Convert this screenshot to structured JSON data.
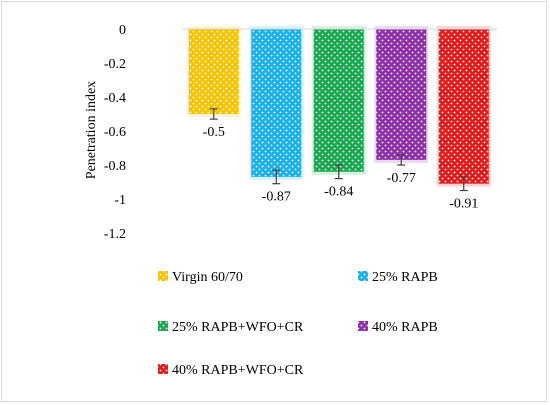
{
  "chart_data": {
    "type": "bar",
    "title": "",
    "xlabel": "",
    "ylabel": "Penetration index",
    "ylim": [
      -1.2,
      0
    ],
    "yticks": [
      "0",
      "-0.2",
      "-0.4",
      "-0.6",
      "-0.8",
      "-1",
      "-1.2"
    ],
    "grid": false,
    "legend_position": "bottom",
    "categories": [
      "Virgin 60/70",
      "25% RAPB",
      "25% RAPB+WFO+CR",
      "40% RAPB",
      "40% RAPB+WFO+CR"
    ],
    "values": [
      -0.5,
      -0.87,
      -0.84,
      -0.77,
      -0.91
    ],
    "data_labels": [
      "-0.5",
      "-0.87",
      "-0.84",
      "-0.77",
      "-0.91"
    ],
    "error": [
      0.03,
      0.04,
      0.04,
      0.03,
      0.04
    ],
    "colors": [
      "#f5c400",
      "#1ab0e8",
      "#19a850",
      "#8e2fa8",
      "#e01b1b"
    ],
    "pattern": "white-dots"
  }
}
